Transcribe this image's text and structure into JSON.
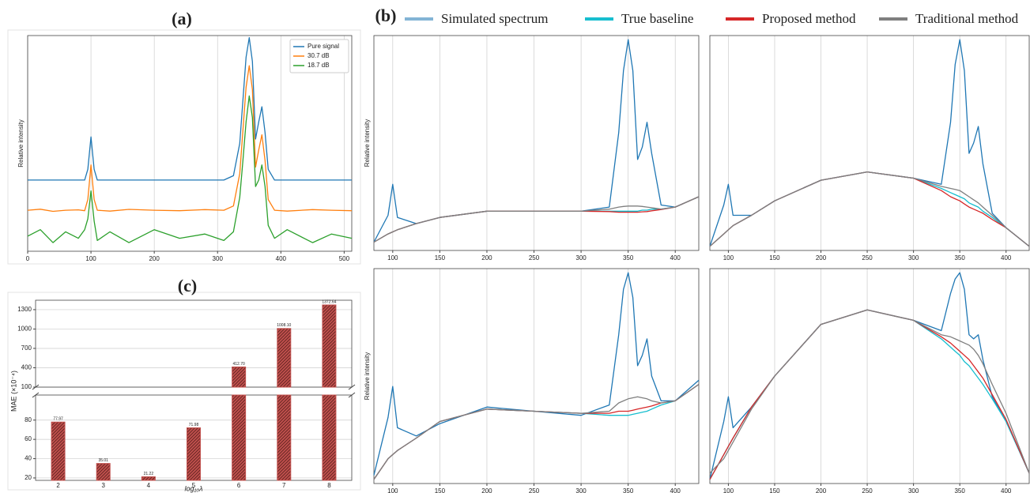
{
  "chart_data": [
    {
      "type": "line",
      "label": "(a)",
      "y_label": "Relative intensity",
      "x": [
        0,
        20,
        40,
        60,
        80,
        90,
        95,
        100,
        105,
        110,
        130,
        160,
        200,
        240,
        280,
        310,
        325,
        335,
        340,
        345,
        350,
        355,
        360,
        365,
        370,
        375,
        380,
        390,
        410,
        450,
        480,
        512
      ],
      "xlim": [
        0,
        512
      ],
      "xticks": [
        0,
        100,
        200,
        300,
        400,
        500
      ],
      "ylim": [
        0,
        1
      ],
      "grid": true,
      "legend": "upper right",
      "series": [
        {
          "name": "Pure signal",
          "color": "#1f77b4",
          "values": [
            0.33,
            0.33,
            0.33,
            0.33,
            0.33,
            0.33,
            0.38,
            0.53,
            0.38,
            0.33,
            0.33,
            0.33,
            0.33,
            0.33,
            0.33,
            0.33,
            0.35,
            0.5,
            0.7,
            0.9,
            0.99,
            0.88,
            0.52,
            0.6,
            0.67,
            0.55,
            0.38,
            0.33,
            0.33,
            0.33,
            0.33,
            0.33
          ]
        },
        {
          "name": "30.7 dB",
          "color": "#ff7f0e",
          "values": [
            0.19,
            0.195,
            0.185,
            0.19,
            0.192,
            0.188,
            0.24,
            0.4,
            0.24,
            0.19,
            0.186,
            0.194,
            0.19,
            0.188,
            0.193,
            0.19,
            0.21,
            0.36,
            0.56,
            0.76,
            0.86,
            0.75,
            0.39,
            0.47,
            0.54,
            0.42,
            0.24,
            0.19,
            0.186,
            0.193,
            0.19,
            0.188
          ]
        },
        {
          "name": "18.7 dB",
          "color": "#2ca02c",
          "values": [
            0.07,
            0.1,
            0.04,
            0.09,
            0.06,
            0.1,
            0.15,
            0.28,
            0.14,
            0.05,
            0.09,
            0.04,
            0.1,
            0.06,
            0.08,
            0.05,
            0.09,
            0.25,
            0.42,
            0.6,
            0.72,
            0.62,
            0.3,
            0.33,
            0.4,
            0.3,
            0.12,
            0.06,
            0.1,
            0.04,
            0.08,
            0.06
          ]
        }
      ]
    },
    {
      "type": "line-grid",
      "label": "(b)",
      "y_label": "Relative intensity",
      "x": [
        80,
        95,
        100,
        105,
        125,
        150,
        200,
        250,
        300,
        330,
        340,
        345,
        350,
        355,
        360,
        365,
        370,
        375,
        385,
        400,
        425
      ],
      "xlim": [
        80,
        425
      ],
      "xticks": [
        100,
        150,
        200,
        250,
        300,
        350,
        400
      ],
      "ylim": [
        -0.02,
        1.02
      ],
      "grid": true,
      "legend": "top",
      "series": [
        {
          "name": "Simulated spectrum",
          "color": "#1f77b4",
          "values": [
            [
              0.02,
              0.15,
              0.3,
              0.14,
              0.11,
              0.14,
              0.17,
              0.17,
              0.17,
              0.19,
              0.55,
              0.85,
              1.0,
              0.85,
              0.42,
              0.48,
              0.6,
              0.45,
              0.2,
              0.19,
              0.24
            ],
            [
              0.0,
              0.2,
              0.3,
              0.15,
              0.15,
              0.22,
              0.32,
              0.36,
              0.33,
              0.3,
              0.6,
              0.88,
              1.0,
              0.85,
              0.45,
              0.5,
              0.58,
              0.4,
              0.16,
              0.09,
              0.0
            ],
            [
              0.02,
              0.3,
              0.45,
              0.25,
              0.21,
              0.27,
              0.35,
              0.33,
              0.31,
              0.36,
              0.7,
              0.92,
              1.0,
              0.88,
              0.55,
              0.6,
              0.68,
              0.5,
              0.38,
              0.38,
              0.48
            ],
            [
              0.0,
              0.28,
              0.4,
              0.25,
              0.35,
              0.5,
              0.75,
              0.82,
              0.77,
              0.72,
              0.9,
              0.97,
              1.0,
              0.92,
              0.7,
              0.68,
              0.7,
              0.58,
              0.4,
              0.28,
              0.03
            ]
          ]
        },
        {
          "name": "True baseline",
          "color": "#17becf",
          "values": [
            [
              0.02,
              0.06,
              0.07,
              0.08,
              0.11,
              0.14,
              0.17,
              0.17,
              0.17,
              0.17,
              0.17,
              0.17,
              0.17,
              0.17,
              0.17,
              0.175,
              0.175,
              0.18,
              0.18,
              0.19,
              0.24
            ],
            [
              0.0,
              0.06,
              0.08,
              0.1,
              0.15,
              0.22,
              0.32,
              0.36,
              0.33,
              0.28,
              0.26,
              0.25,
              0.24,
              0.23,
              0.21,
              0.2,
              0.19,
              0.17,
              0.14,
              0.09,
              0.0
            ],
            [
              0.0,
              0.1,
              0.12,
              0.14,
              0.2,
              0.28,
              0.34,
              0.33,
              0.32,
              0.31,
              0.31,
              0.31,
              0.31,
              0.315,
              0.32,
              0.325,
              0.33,
              0.34,
              0.36,
              0.38,
              0.46
            ],
            [
              0.0,
              0.12,
              0.16,
              0.2,
              0.35,
              0.5,
              0.75,
              0.82,
              0.77,
              0.68,
              0.64,
              0.62,
              0.6,
              0.57,
              0.55,
              0.52,
              0.49,
              0.46,
              0.39,
              0.28,
              0.03
            ]
          ]
        },
        {
          "name": "Proposed method",
          "color": "#d62728",
          "values": [
            [
              0.02,
              0.06,
              0.07,
              0.08,
              0.11,
              0.14,
              0.17,
              0.17,
              0.17,
              0.168,
              0.165,
              0.165,
              0.165,
              0.165,
              0.165,
              0.167,
              0.168,
              0.172,
              0.178,
              0.19,
              0.24
            ],
            [
              0.0,
              0.06,
              0.08,
              0.1,
              0.15,
              0.22,
              0.32,
              0.36,
              0.33,
              0.27,
              0.24,
              0.23,
              0.22,
              0.205,
              0.19,
              0.18,
              0.17,
              0.16,
              0.13,
              0.09,
              0.0
            ],
            [
              0.0,
              0.1,
              0.12,
              0.14,
              0.2,
              0.28,
              0.34,
              0.33,
              0.32,
              0.32,
              0.33,
              0.33,
              0.33,
              0.335,
              0.34,
              0.345,
              0.35,
              0.355,
              0.37,
              0.38,
              0.46
            ],
            [
              0.0,
              0.12,
              0.16,
              0.2,
              0.35,
              0.5,
              0.75,
              0.82,
              0.77,
              0.69,
              0.66,
              0.64,
              0.62,
              0.6,
              0.58,
              0.55,
              0.52,
              0.49,
              0.41,
              0.29,
              0.03
            ]
          ]
        },
        {
          "name": "Traditional method",
          "color": "#7f7f7f",
          "values": [
            [
              0.02,
              0.06,
              0.07,
              0.08,
              0.11,
              0.14,
              0.17,
              0.17,
              0.17,
              0.18,
              0.19,
              0.193,
              0.195,
              0.195,
              0.195,
              0.193,
              0.19,
              0.187,
              0.18,
              0.19,
              0.24
            ],
            [
              0.0,
              0.06,
              0.08,
              0.1,
              0.15,
              0.22,
              0.32,
              0.36,
              0.33,
              0.29,
              0.28,
              0.275,
              0.27,
              0.255,
              0.24,
              0.225,
              0.21,
              0.19,
              0.15,
              0.09,
              0.0
            ],
            [
              0.0,
              0.1,
              0.12,
              0.14,
              0.2,
              0.28,
              0.34,
              0.33,
              0.32,
              0.33,
              0.37,
              0.38,
              0.39,
              0.395,
              0.4,
              0.395,
              0.39,
              0.38,
              0.37,
              0.38,
              0.46
            ],
            [
              0.03,
              0.1,
              0.14,
              0.18,
              0.34,
              0.5,
              0.75,
              0.82,
              0.77,
              0.7,
              0.69,
              0.68,
              0.67,
              0.66,
              0.65,
              0.63,
              0.6,
              0.56,
              0.46,
              0.32,
              0.03
            ]
          ]
        }
      ]
    },
    {
      "type": "bar",
      "label": "(c)",
      "x_label": "log₁₀λ",
      "y_label": "MAE (×10⁻⁴)",
      "categories": [
        "2",
        "3",
        "4",
        "5",
        "6",
        "7",
        "8"
      ],
      "values": [
        77.97,
        35.01,
        21.22,
        71.98,
        412.7,
        1008.1,
        1372.64
      ],
      "value_labels": [
        "77.97",
        "35.01",
        "21.22",
        "71.98",
        "412.70",
        "1008.10",
        "1372.64"
      ],
      "color": "#c0504d",
      "hatch": true,
      "grid": true,
      "ylim": [
        17.5,
        106
      ],
      "yticks": [
        20,
        40,
        60,
        80
      ],
      "upper_ylim": [
        100,
        1446
      ],
      "upper_yticks": [
        100,
        400,
        700,
        1000,
        1300
      ]
    }
  ]
}
